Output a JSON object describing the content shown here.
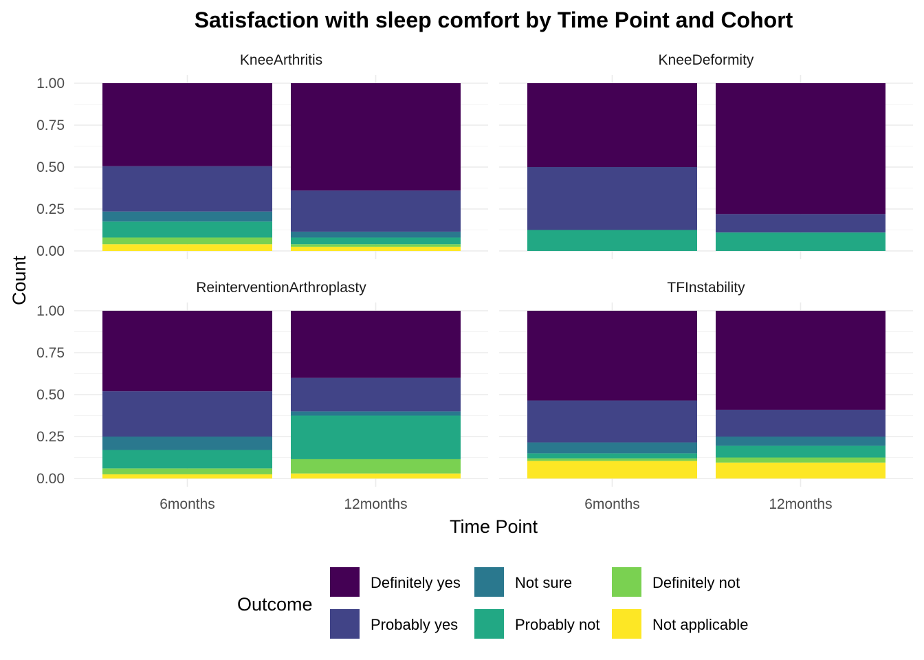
{
  "chart_data": {
    "type": "bar",
    "stacked": true,
    "title": "Satisfaction with sleep comfort by Time Point and Cohort",
    "xlabel": "Time Point",
    "ylabel": "Count",
    "ylim": [
      0,
      1
    ],
    "yticks": [
      "0.00",
      "0.25",
      "0.50",
      "0.75",
      "1.00"
    ],
    "ytick_values": [
      0,
      0.25,
      0.5,
      0.75,
      1.0
    ],
    "categories": [
      "6months",
      "12months"
    ],
    "legend": {
      "title": "Outcome",
      "position": "bottom",
      "entries": [
        "Definitely yes",
        "Probably yes",
        "Not sure",
        "Probably not",
        "Definitely not",
        "Not applicable"
      ]
    },
    "colors": {
      "Definitely yes": "#440154",
      "Probably yes": "#414487",
      "Not sure": "#2A788E",
      "Probably not": "#22A884",
      "Definitely not": "#7AD151",
      "Not applicable": "#FDE725"
    },
    "grid": true,
    "facets": [
      {
        "name": "KneeArthritis",
        "bars": [
          {
            "category": "6months",
            "segments": {
              "Definitely yes": 0.495,
              "Probably yes": 0.27,
              "Not sure": 0.06,
              "Probably not": 0.095,
              "Definitely not": 0.04,
              "Not applicable": 0.04
            }
          },
          {
            "category": "12months",
            "segments": {
              "Definitely yes": 0.64,
              "Probably yes": 0.245,
              "Not sure": 0.035,
              "Probably not": 0.04,
              "Definitely not": 0.015,
              "Not applicable": 0.025
            }
          }
        ]
      },
      {
        "name": "KneeDeformity",
        "bars": [
          {
            "category": "6months",
            "segments": {
              "Definitely yes": 0.5,
              "Probably yes": 0.375,
              "Not sure": 0,
              "Probably not": 0.125,
              "Definitely not": 0,
              "Not applicable": 0
            }
          },
          {
            "category": "12months",
            "segments": {
              "Definitely yes": 0.78,
              "Probably yes": 0.11,
              "Not sure": 0,
              "Probably not": 0.11,
              "Definitely not": 0,
              "Not applicable": 0
            }
          }
        ]
      },
      {
        "name": "ReinterventionArthroplasty",
        "bars": [
          {
            "category": "6months",
            "segments": {
              "Definitely yes": 0.48,
              "Probably yes": 0.27,
              "Not sure": 0.08,
              "Probably not": 0.11,
              "Definitely not": 0.035,
              "Not applicable": 0.025
            }
          },
          {
            "category": "12months",
            "segments": {
              "Definitely yes": 0.4,
              "Probably yes": 0.2,
              "Not sure": 0.025,
              "Probably not": 0.26,
              "Definitely not": 0.085,
              "Not applicable": 0.03
            }
          }
        ]
      },
      {
        "name": "TFInstability",
        "bars": [
          {
            "category": "6months",
            "segments": {
              "Definitely yes": 0.535,
              "Probably yes": 0.25,
              "Not sure": 0.065,
              "Probably not": 0.03,
              "Definitely not": 0.015,
              "Not applicable": 0.105
            }
          },
          {
            "category": "12months",
            "segments": {
              "Definitely yes": 0.59,
              "Probably yes": 0.16,
              "Not sure": 0.055,
              "Probably not": 0.07,
              "Definitely not": 0.03,
              "Not applicable": 0.095
            }
          }
        ]
      }
    ]
  }
}
